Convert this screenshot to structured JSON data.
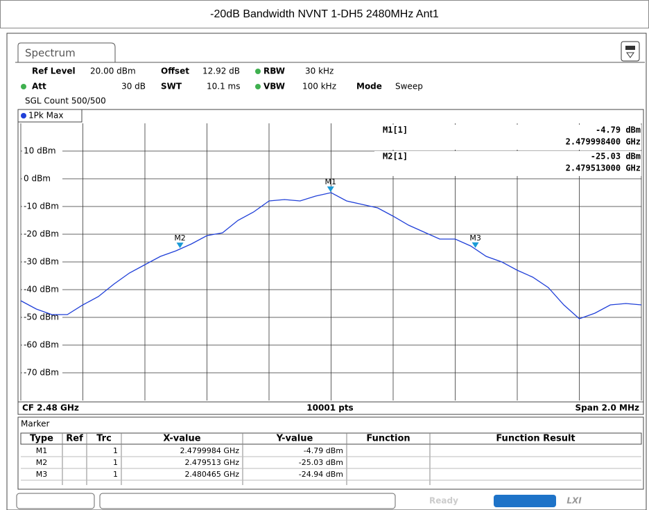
{
  "title": "-20dB Bandwidth NVNT 1-DH5 2480MHz Ant1",
  "tab": "Spectrum",
  "settings": [
    {
      "label": "Ref Level",
      "value": "20.00 dBm"
    },
    {
      "label": "Offset",
      "value": "12.92 dB"
    },
    {
      "label": "RBW",
      "value": "30 kHz"
    },
    {
      "label": "Att",
      "value": "30 dB"
    },
    {
      "label": "SWT",
      "value": "10.1 ms"
    },
    {
      "label": "VBW",
      "value": "100 kHz"
    },
    {
      "label": "Mode",
      "value": "Sweep"
    }
  ],
  "sgl_count": "SGL Count 500/500",
  "chart_data": {
    "type": "line",
    "x": [
      2.479,
      2.47905,
      2.4791,
      2.47915,
      2.4792,
      2.47925,
      2.4793,
      2.47935,
      2.4794,
      2.47945,
      2.4795,
      2.47955,
      2.4796,
      2.47965,
      2.4797,
      2.47975,
      2.4798,
      2.47985,
      2.4799,
      2.47995,
      2.48,
      2.48005,
      2.4801,
      2.48015,
      2.4802,
      2.48025,
      2.4803,
      2.48035,
      2.4804,
      2.48045,
      2.4805,
      2.48055,
      2.4806,
      2.48065,
      2.4807,
      2.48075,
      2.4808,
      2.48085,
      2.4809,
      2.48095,
      2.481
    ],
    "series": [
      {
        "name": "1Pk Max",
        "color": "#1f3fd8",
        "values": [
          -44,
          -47,
          -49,
          -49,
          -45.5,
          -42.5,
          -38,
          -34,
          -31,
          -28,
          -26,
          -23.5,
          -20.5,
          -19.5,
          -15,
          -12,
          -8,
          -7.5,
          -8,
          -6.25,
          -5,
          -8,
          -9.25,
          -10.5,
          -13.5,
          -16.75,
          -19.25,
          -21.75,
          -21.75,
          -24.25,
          -28,
          -30,
          -33,
          -35.5,
          -39.25,
          -45.5,
          -50.5,
          -48.5,
          -45.5,
          -45,
          -45.5
        ]
      }
    ],
    "xlim": [
      2.479,
      2.481
    ],
    "xticks": [
      2.479,
      2.4792,
      2.4794,
      2.4796,
      2.4798,
      2.48,
      2.4802,
      2.4804,
      2.4806,
      2.4808,
      2.481
    ],
    "ylim": [
      -80,
      20
    ],
    "yticks": [
      {
        "value": 10,
        "label": "10 dBm"
      },
      {
        "value": 0,
        "label": "0 dBm"
      },
      {
        "value": -10,
        "label": "-10 dBm"
      },
      {
        "value": -20,
        "label": "-20 dBm"
      },
      {
        "value": -30,
        "label": "-30 dBm"
      },
      {
        "value": -40,
        "label": "-40 dBm"
      },
      {
        "value": -50,
        "label": "-50 dBm"
      },
      {
        "value": -60,
        "label": "-60 dBm"
      },
      {
        "value": -70,
        "label": "-70 dBm"
      }
    ],
    "grid": true,
    "markers": [
      {
        "name": "M1",
        "x": 2.4799984,
        "y": -4.79
      },
      {
        "name": "M2",
        "x": 2.479513,
        "y": -25.03
      },
      {
        "name": "M3",
        "x": 2.480465,
        "y": -24.94
      }
    ],
    "marker_color": "#1a9ad6",
    "readouts": [
      {
        "label": "M1[1]",
        "value": "-4.79 dBm",
        "freq": "2.479998400 GHz"
      },
      {
        "label": "M2[1]",
        "value": "-25.03 dBm",
        "freq": "2.479513000 GHz"
      }
    ]
  },
  "footer": {
    "left": "CF 2.48 GHz",
    "center": "10001 pts",
    "right": "Span 2.0 MHz"
  },
  "marker_table": {
    "title": "Marker",
    "columns": [
      "Type",
      "Ref",
      "Trc",
      "X-value",
      "Y-value",
      "Function",
      "Function Result"
    ],
    "rows": [
      [
        "M1",
        "",
        "1",
        "2.4799984 GHz",
        "-4.79 dBm",
        "",
        ""
      ],
      [
        "M2",
        "",
        "1",
        "2.479513 GHz",
        "-25.03 dBm",
        "",
        ""
      ],
      [
        "M3",
        "",
        "1",
        "2.480465 GHz",
        "-24.94 dBm",
        "",
        ""
      ]
    ]
  },
  "status": "Ready"
}
